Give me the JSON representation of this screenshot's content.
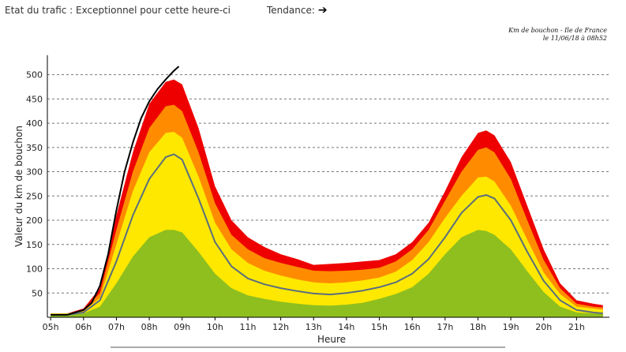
{
  "header": {
    "status_label": "Etat du trafic : Exceptionnel pour cette heure-ci",
    "trend_label": "Tendance:",
    "trend_icon": "right-arrow-icon"
  },
  "caption": {
    "line1": "Km de bouchon - Ile de France",
    "line2": "le 11/06/18 à 08h52"
  },
  "chart_data": {
    "type": "area",
    "xlabel": "Heure",
    "ylabel": "Valeur du  km de bouchon",
    "x_ticks": [
      "05h",
      "06h",
      "07h",
      "08h",
      "09h",
      "10h",
      "11h",
      "12h",
      "13h",
      "14h",
      "15h",
      "16h",
      "17h",
      "18h",
      "19h",
      "20h",
      "21h"
    ],
    "y_ticks": [
      50,
      100,
      150,
      200,
      250,
      300,
      350,
      400,
      450,
      500
    ],
    "xlim": [
      4.9,
      22
    ],
    "ylim": [
      0,
      540
    ],
    "grid": true,
    "hours": [
      5,
      5.5,
      6,
      6.5,
      7,
      7.5,
      8,
      8.5,
      8.75,
      9,
      9.5,
      10,
      10.5,
      11,
      11.5,
      12,
      12.5,
      13,
      13.5,
      14,
      14.5,
      15,
      15.5,
      16,
      16.5,
      17,
      17.5,
      18,
      18.25,
      18.5,
      19,
      19.5,
      20,
      20.5,
      21,
      21.5,
      21.8
    ],
    "bands": [
      {
        "color": "#ee0000",
        "values": [
          8,
          8,
          18,
          60,
          210,
          340,
          440,
          485,
          490,
          480,
          390,
          270,
          200,
          165,
          145,
          130,
          120,
          108,
          110,
          112,
          115,
          118,
          130,
          155,
          195,
          260,
          330,
          380,
          385,
          375,
          320,
          230,
          140,
          70,
          35,
          28,
          25
        ]
      },
      {
        "color": "#ff8c00",
        "values": [
          8,
          8,
          15,
          50,
          180,
          300,
          390,
          435,
          438,
          425,
          340,
          235,
          170,
          140,
          122,
          112,
          104,
          96,
          95,
          96,
          98,
          102,
          115,
          140,
          180,
          240,
          300,
          345,
          350,
          340,
          285,
          200,
          118,
          60,
          28,
          22,
          20
        ]
      },
      {
        "color": "#ffe800",
        "values": [
          8,
          8,
          12,
          40,
          150,
          260,
          340,
          380,
          382,
          370,
          290,
          195,
          140,
          112,
          96,
          86,
          78,
          72,
          70,
          72,
          76,
          82,
          94,
          118,
          155,
          205,
          250,
          288,
          290,
          280,
          230,
          160,
          92,
          48,
          22,
          18,
          16
        ]
      },
      {
        "color": "#8fbf1e",
        "values": [
          5,
          5,
          8,
          22,
          70,
          125,
          165,
          180,
          180,
          175,
          135,
          90,
          60,
          45,
          38,
          32,
          28,
          25,
          24,
          26,
          30,
          38,
          48,
          62,
          90,
          130,
          165,
          180,
          178,
          170,
          140,
          95,
          52,
          22,
          10,
          8,
          7
        ]
      }
    ],
    "series": [
      {
        "color": "#5a6e7e",
        "x": [
          5,
          5.5,
          6,
          6.5,
          7,
          7.5,
          8,
          8.5,
          8.75,
          9,
          9.5,
          10,
          10.5,
          11,
          11.5,
          12,
          12.5,
          13,
          13.5,
          14,
          14.5,
          15,
          15.5,
          16,
          16.5,
          17,
          17.5,
          18,
          18.25,
          18.5,
          19,
          19.5,
          20,
          20.5,
          21,
          21.5,
          21.8
        ],
        "values": [
          5,
          5,
          10,
          35,
          115,
          210,
          285,
          330,
          336,
          325,
          245,
          155,
          105,
          80,
          68,
          60,
          54,
          49,
          47,
          50,
          55,
          62,
          72,
          90,
          120,
          165,
          215,
          248,
          252,
          245,
          200,
          135,
          75,
          35,
          15,
          10,
          8
        ]
      },
      {
        "color": "#000000",
        "x": [
          5,
          5.5,
          6,
          6.25,
          6.5,
          6.75,
          7,
          7.25,
          7.5,
          7.75,
          8,
          8.25,
          8.5,
          8.75,
          8.9
        ],
        "values": [
          5,
          5,
          15,
          30,
          65,
          130,
          220,
          300,
          360,
          410,
          445,
          470,
          490,
          508,
          517
        ]
      }
    ]
  }
}
